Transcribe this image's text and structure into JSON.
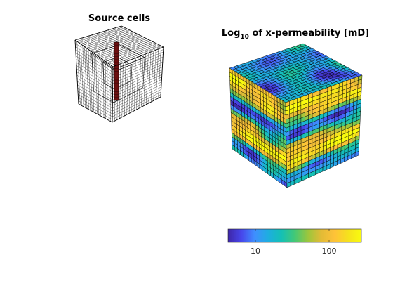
{
  "figure": {
    "left_panel": {
      "title": "Source cells"
    },
    "right_panel": {
      "title_main": "Log",
      "title_sub": "10",
      "title_rest": " of x-permeability [mD]"
    },
    "colorbar": {
      "ticks": [
        "10",
        "100"
      ],
      "colormap": [
        "#3e26a8",
        "#4746eb",
        "#3f8fff",
        "#1eaee0",
        "#14c0b5",
        "#43c876",
        "#9cc63c",
        "#e3bb36",
        "#fec238",
        "#f5e11d",
        "#f9fb0e"
      ]
    },
    "colors": {
      "grid_line": "#000000",
      "source_column": "#6b0f0f",
      "background": "#ffffff"
    }
  }
}
